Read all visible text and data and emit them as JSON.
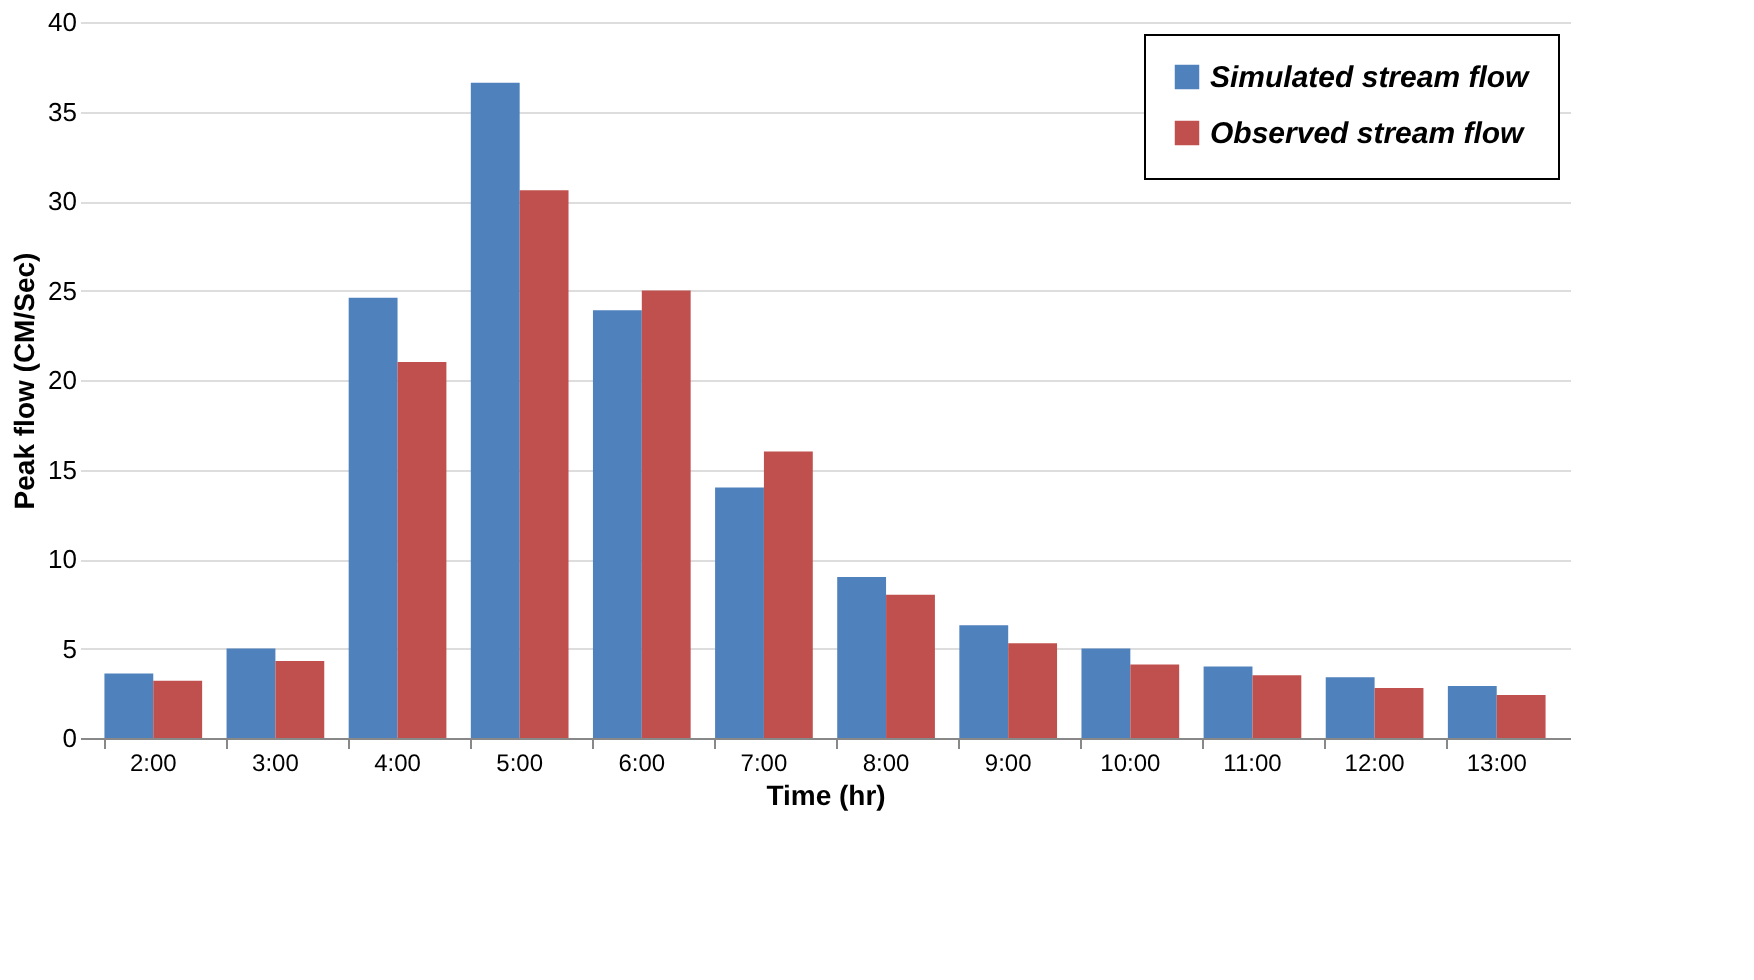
{
  "chart_data": {
    "type": "bar",
    "xlabel": "Time (hr)",
    "ylabel": "Peak flow (CM/Sec)",
    "categories": [
      "2:00",
      "3:00",
      "4:00",
      "5:00",
      "6:00",
      "7:00",
      "8:00",
      "9:00",
      "10:00",
      "11:00",
      "12:00",
      "13:00"
    ],
    "series": [
      {
        "name": "Simulated stream flow",
        "color": "#4f81bd",
        "values": [
          3.6,
          5.0,
          24.6,
          36.6,
          23.9,
          14.0,
          9.0,
          6.3,
          5.0,
          4.0,
          3.4,
          2.9
        ]
      },
      {
        "name": "Observed stream flow",
        "color": "#c0504d",
        "values": [
          3.2,
          4.3,
          21.0,
          30.6,
          25.0,
          16.0,
          8.0,
          5.3,
          4.1,
          3.5,
          2.8,
          2.4
        ]
      }
    ],
    "ylim": [
      0,
      40
    ],
    "yticks": [
      0,
      5,
      10,
      15,
      20,
      25,
      30,
      35,
      40
    ],
    "grid": "y",
    "legend": "top right"
  }
}
